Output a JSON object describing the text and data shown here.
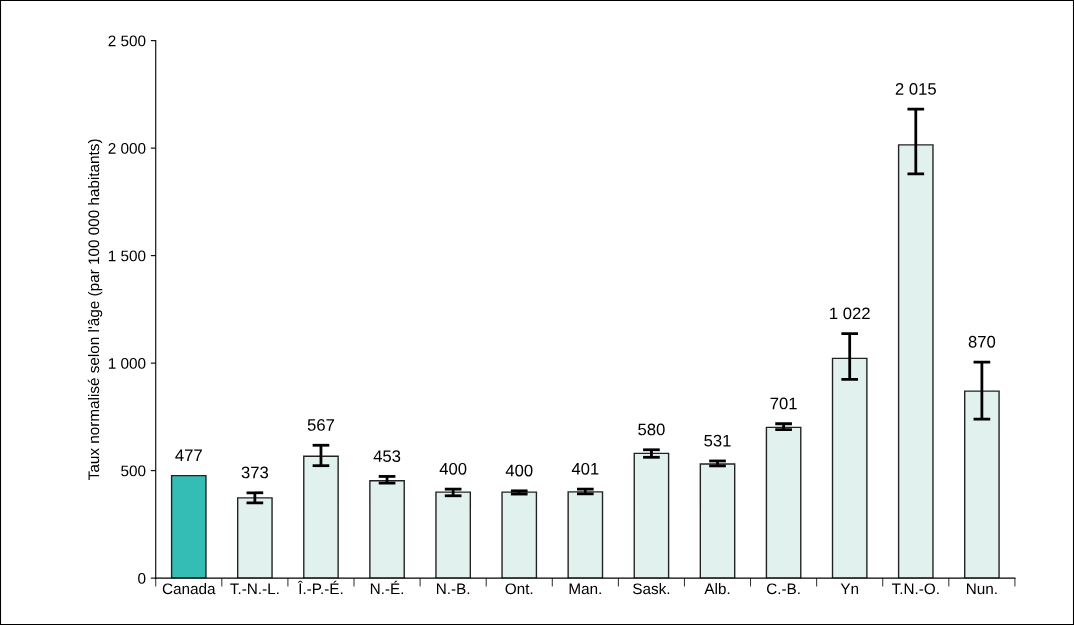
{
  "chart_data": {
    "type": "bar",
    "ylabel": "Taux normalisé selon l'âge (par 100 000 habitants)",
    "categories": [
      "Canada",
      "T.-N.-L.",
      "Î.-P.-É.",
      "N.-É.",
      "N.-B.",
      "Ont.",
      "Man.",
      "Sask.",
      "Alb.",
      "C.-B.",
      "Yn",
      "T.N.-O.",
      "Nun."
    ],
    "values": [
      477,
      373,
      567,
      453,
      400,
      400,
      401,
      580,
      531,
      701,
      1022,
      2015,
      870
    ],
    "colors": [
      "#33bdb4",
      "#e0f1ee",
      "#e0f1ee",
      "#e0f1ee",
      "#e0f1ee",
      "#e0f1ee",
      "#e0f1ee",
      "#e0f1ee",
      "#e0f1ee",
      "#e0f1ee",
      "#e0f1ee",
      "#e0f1ee",
      "#e0f1ee"
    ],
    "errors": [
      null,
      [
        350,
        397
      ],
      [
        523,
        618
      ],
      [
        442,
        473
      ],
      [
        383,
        414
      ],
      [
        391,
        406
      ],
      [
        392,
        414
      ],
      [
        562,
        597
      ],
      [
        522,
        545
      ],
      [
        691,
        718
      ],
      [
        924,
        1137
      ],
      [
        1880,
        2181
      ],
      [
        740,
        1005
      ]
    ],
    "value_labels": [
      "477",
      "373",
      "567",
      "453",
      "400",
      "400",
      "401",
      "580",
      "531",
      "701",
      "1 022",
      "2 015",
      "870"
    ],
    "ylim": [
      0,
      2500
    ],
    "yticks": [
      0,
      500,
      {
        "value": 1000,
        "label": "1 000"
      },
      {
        "value": 1500,
        "label": "1 500"
      },
      {
        "value": 2000,
        "label": "2 000"
      },
      {
        "value": 2500,
        "label": "2 500"
      }
    ],
    "grid": false,
    "legend": false
  }
}
